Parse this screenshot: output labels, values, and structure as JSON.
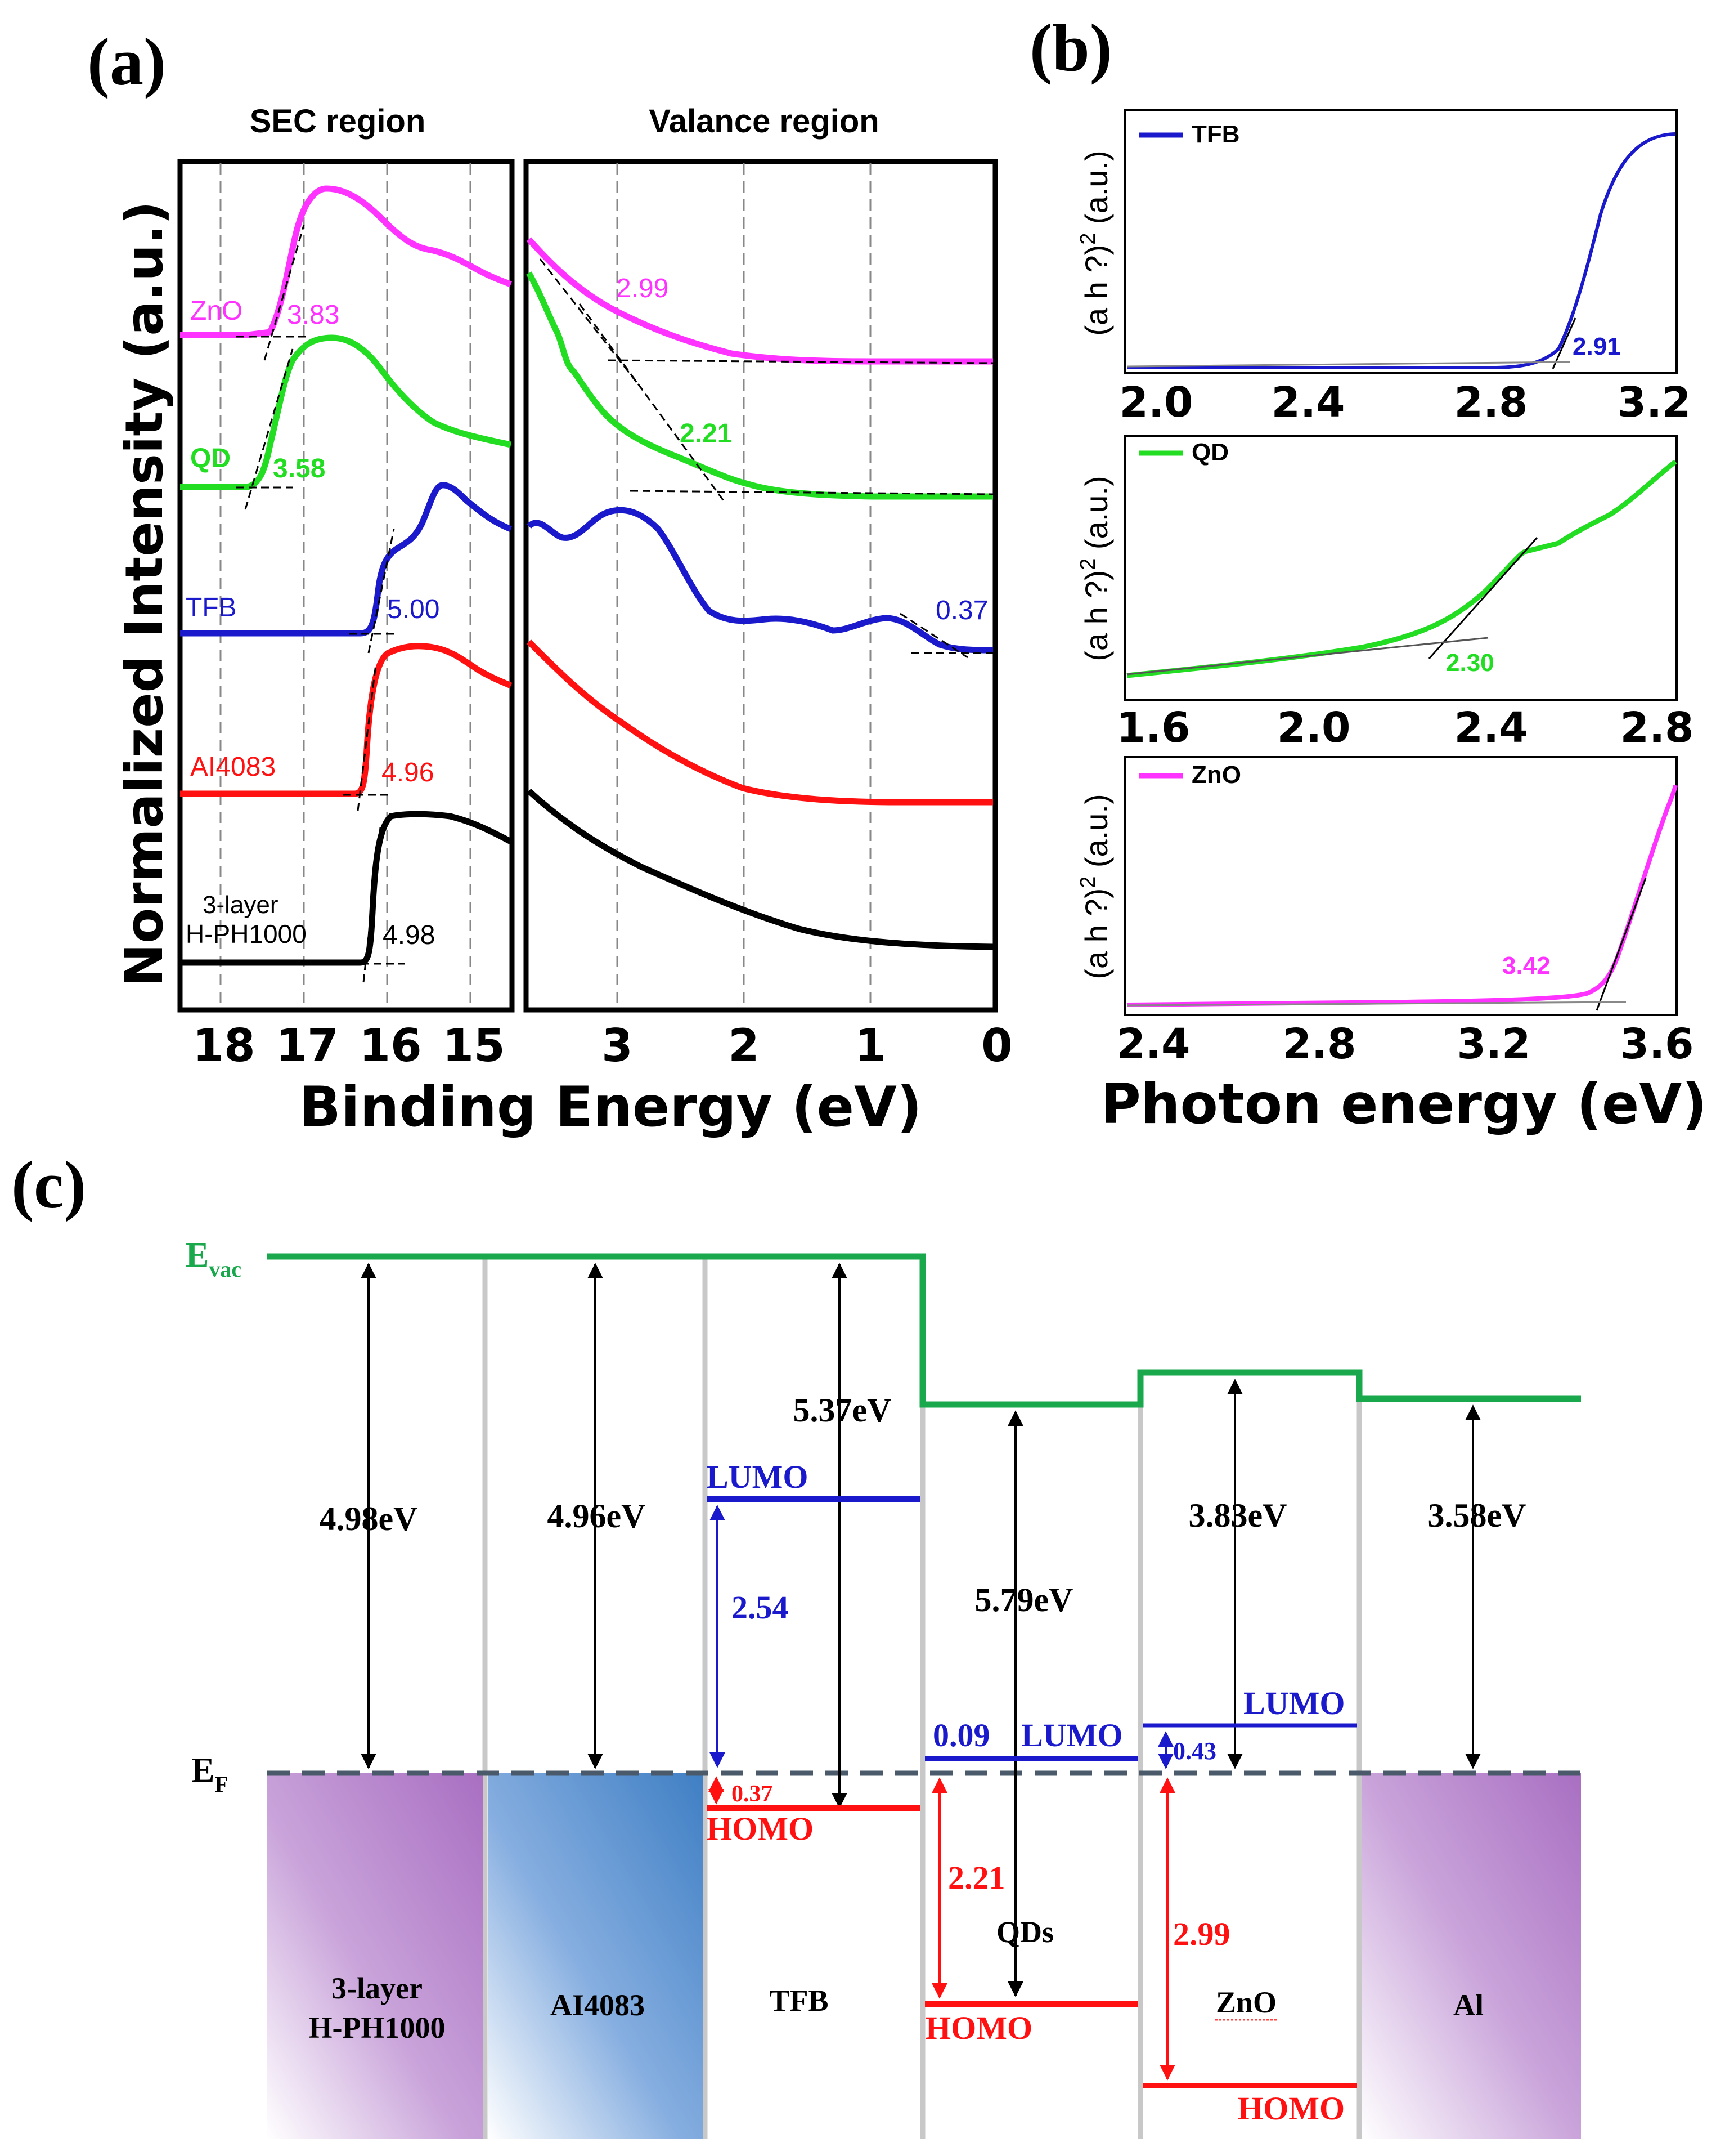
{
  "colors": {
    "zno": "#ff33ff",
    "qd": "#22dd22",
    "tfb": "#1a1acc",
    "ai4083": "#ff1111",
    "hph1000": "#000000",
    "evac": "#1aa84c",
    "lumo": "#1a1acc",
    "homo": "#ff1111",
    "fermi": "#4a5a6a",
    "purple_block": "#b07cc8",
    "blue_block": "#4a86c8"
  },
  "panel_a": {
    "label": "(a)",
    "sec_title": "SEC region",
    "val_title": "Valance region",
    "ylabel": "Normalized Intensity (a.u.)",
    "xlabel": "Binding Energy (eV)",
    "sec_ticks": [
      "18",
      "17",
      "16",
      "15"
    ],
    "val_ticks": [
      "3",
      "2",
      "1",
      "0"
    ],
    "curve_labels": {
      "zno": "ZnO",
      "qd": "QD",
      "tfb": "TFB",
      "ai4083": "AI4083",
      "hph_line1": "3-layer",
      "hph_line2": "H-PH1000"
    },
    "sec_values": {
      "zno": "3.83",
      "qd": "3.58",
      "tfb": "5.00",
      "ai4083": "4.96",
      "hph": "4.98"
    },
    "val_values": {
      "zno": "2.99",
      "qd": "2.21",
      "tfb": "0.37"
    }
  },
  "panel_b": {
    "label": "(b)",
    "ylabel_main": "(a h ?)",
    "ylabel_sup": "2",
    "ylabel_unit": " (a.u.)",
    "xlabel": "Photon energy (eV)",
    "tfb": {
      "legend": "TFB",
      "value": "2.91",
      "ticks": [
        "2.0",
        "2.4",
        "2.8",
        "3.2"
      ]
    },
    "qd": {
      "legend": "QD",
      "value": "2.30",
      "ticks": [
        "1.6",
        "2.0",
        "2.4",
        "2.8"
      ]
    },
    "zno": {
      "legend": "ZnO",
      "value": "3.42",
      "ticks": [
        "2.4",
        "2.8",
        "3.2",
        "3.6"
      ]
    }
  },
  "panel_c": {
    "label": "(c)",
    "evac": "E",
    "evac_sub": "vac",
    "ef": "E",
    "ef_sub": "F",
    "work_functions": [
      "4.98eV",
      "4.96eV",
      "5.37eV",
      "5.79eV",
      "3.83eV",
      "3.58eV"
    ],
    "tfb_lumo": "LUMO",
    "tfb_gap": "2.54",
    "tfb_homo": "HOMO",
    "tfb_offset": "0.37",
    "qd_lumo": "LUMO",
    "qd_offset": "0.09",
    "qd_homo": "HOMO",
    "qd_gap": "2.21",
    "zno_lumo": "LUMO",
    "zno_offset": "0.43",
    "zno_homo": "HOMO",
    "zno_gap": "2.99",
    "layers": {
      "hph_line1": "3-layer",
      "hph_line2": "H-PH1000",
      "ai4083": "AI4083",
      "tfb": "TFB",
      "qds": "QDs",
      "zno": "ZnO",
      "al": "Al"
    }
  }
}
